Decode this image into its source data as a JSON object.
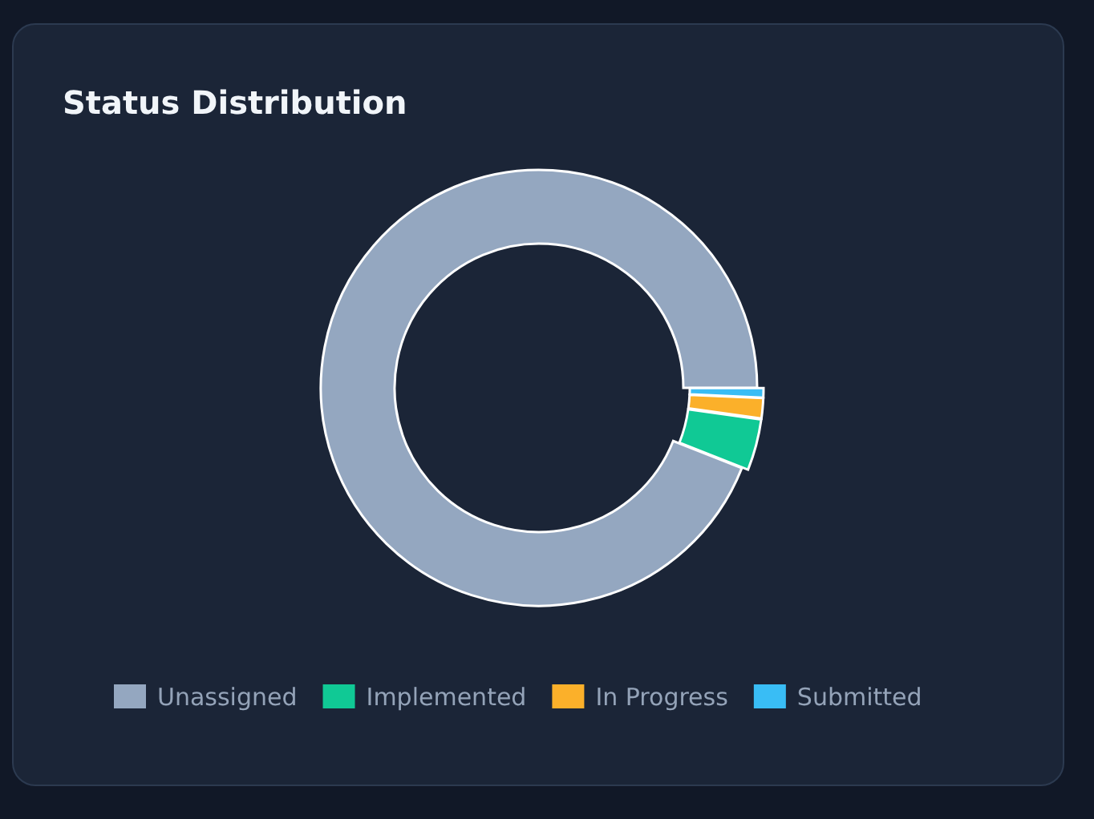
{
  "chart_data": {
    "type": "donut",
    "title": "Status Distribution",
    "categories": [
      "Unassigned",
      "Implemented",
      "In Progress",
      "Submitted"
    ],
    "values": [
      94,
      3.8,
      1.5,
      0.7
    ],
    "colors": [
      "#94a7c0",
      "#10c995",
      "#fbb02a",
      "#39bdf5"
    ],
    "legend": "bottom"
  }
}
